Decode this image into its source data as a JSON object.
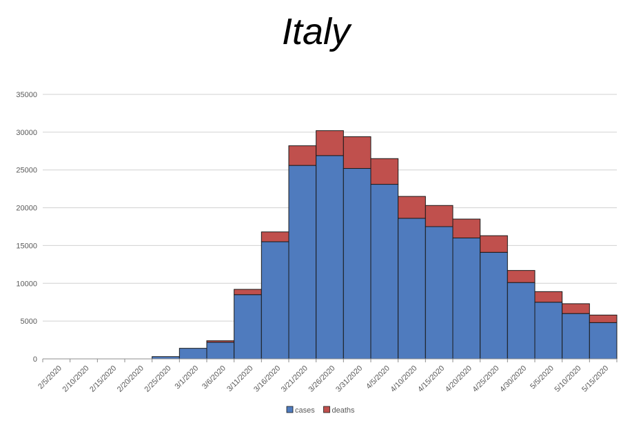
{
  "chart_data": {
    "type": "bar",
    "stacked": true,
    "title": "Italy",
    "xlabel": "",
    "ylabel": "",
    "ylim": [
      0,
      35000
    ],
    "yticks": [
      0,
      5000,
      10000,
      15000,
      20000,
      25000,
      30000,
      35000
    ],
    "grid": true,
    "legend_position": "bottom",
    "categories": [
      "2/5/2020",
      "2/10/2020",
      "2/15/2020",
      "2/20/2020",
      "2/25/2020",
      "3/1/2020",
      "3/6/2020",
      "3/11/2020",
      "3/16/2020",
      "3/21/2020",
      "3/26/2020",
      "3/31/2020",
      "4/5/2020",
      "4/10/2020",
      "4/15/2020",
      "4/20/2020",
      "4/25/2020",
      "4/30/2020",
      "5/5/2020",
      "5/10/2020",
      "5/15/2020"
    ],
    "series": [
      {
        "name": "cases",
        "color": "#4f7bbe",
        "values": [
          0,
          0,
          0,
          0,
          300,
          1400,
          2200,
          8500,
          15500,
          25600,
          26900,
          25200,
          23100,
          18600,
          17500,
          16000,
          14100,
          10100,
          7500,
          6000,
          4800
        ]
      },
      {
        "name": "deaths",
        "color": "#c0504d",
        "values": [
          0,
          0,
          0,
          0,
          0,
          0,
          200,
          700,
          1300,
          2600,
          3300,
          4200,
          3400,
          2900,
          2800,
          2500,
          2200,
          1600,
          1400,
          1300,
          1000
        ]
      }
    ]
  }
}
